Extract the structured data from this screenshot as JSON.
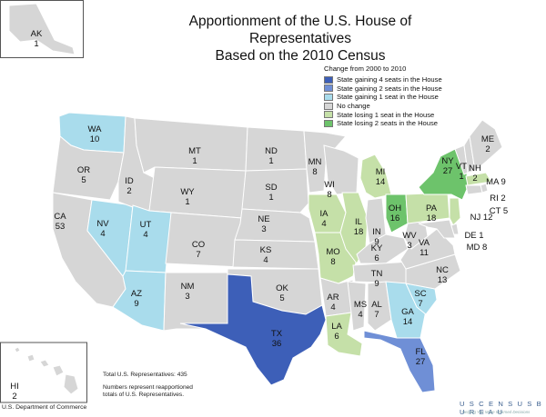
{
  "title": "Apportionment of the U.S. House of Representatives",
  "subtitle": "Based on the 2010 Census",
  "colors": {
    "gain4": "#3d5fb8",
    "gain2": "#6f8fd6",
    "gain1": "#a9dcec",
    "nochange": "#d6d6d6",
    "lose1": "#c5e0a8",
    "lose2": "#6dc36b",
    "water": "#ffffff"
  },
  "legend": {
    "title": "Change from 2000 to 2010",
    "items": [
      {
        "key": "gain4",
        "label": "State gaining 4 seats in the House"
      },
      {
        "key": "gain2",
        "label": "State gaining 2 seats in the House"
      },
      {
        "key": "gain1",
        "label": "State gaining 1 seat in the House"
      },
      {
        "key": "nochange",
        "label": "No change"
      },
      {
        "key": "lose1",
        "label": "State losing 1 seat in the House"
      },
      {
        "key": "lose2",
        "label": "State losing 2 seats in the House"
      }
    ]
  },
  "states": [
    {
      "abbr": "WA",
      "seats": 10,
      "change": 1
    },
    {
      "abbr": "OR",
      "seats": 5,
      "change": 0
    },
    {
      "abbr": "CA",
      "seats": 53,
      "change": 0
    },
    {
      "abbr": "NV",
      "seats": 4,
      "change": 1
    },
    {
      "abbr": "ID",
      "seats": 2,
      "change": 0
    },
    {
      "abbr": "MT",
      "seats": 1,
      "change": 0
    },
    {
      "abbr": "WY",
      "seats": 1,
      "change": 0
    },
    {
      "abbr": "UT",
      "seats": 4,
      "change": 1
    },
    {
      "abbr": "AZ",
      "seats": 9,
      "change": 1
    },
    {
      "abbr": "CO",
      "seats": 7,
      "change": 0
    },
    {
      "abbr": "NM",
      "seats": 3,
      "change": 0
    },
    {
      "abbr": "ND",
      "seats": 1,
      "change": 0
    },
    {
      "abbr": "SD",
      "seats": 1,
      "change": 0
    },
    {
      "abbr": "NE",
      "seats": 3,
      "change": 0
    },
    {
      "abbr": "KS",
      "seats": 4,
      "change": 0
    },
    {
      "abbr": "OK",
      "seats": 5,
      "change": 0
    },
    {
      "abbr": "TX",
      "seats": 36,
      "change": 4
    },
    {
      "abbr": "MN",
      "seats": 8,
      "change": 0
    },
    {
      "abbr": "IA",
      "seats": 4,
      "change": -1
    },
    {
      "abbr": "MO",
      "seats": 8,
      "change": -1
    },
    {
      "abbr": "AR",
      "seats": 4,
      "change": 0
    },
    {
      "abbr": "LA",
      "seats": 6,
      "change": -1
    },
    {
      "abbr": "WI",
      "seats": 8,
      "change": 0
    },
    {
      "abbr": "IL",
      "seats": 18,
      "change": -1
    },
    {
      "abbr": "MI",
      "seats": 14,
      "change": -1
    },
    {
      "abbr": "IN",
      "seats": 9,
      "change": 0
    },
    {
      "abbr": "OH",
      "seats": 16,
      "change": -2
    },
    {
      "abbr": "KY",
      "seats": 6,
      "change": 0
    },
    {
      "abbr": "TN",
      "seats": 9,
      "change": 0
    },
    {
      "abbr": "MS",
      "seats": 4,
      "change": 0
    },
    {
      "abbr": "AL",
      "seats": 7,
      "change": 0
    },
    {
      "abbr": "GA",
      "seats": 14,
      "change": 1
    },
    {
      "abbr": "FL",
      "seats": 27,
      "change": 2
    },
    {
      "abbr": "SC",
      "seats": 7,
      "change": 1
    },
    {
      "abbr": "NC",
      "seats": 13,
      "change": 0
    },
    {
      "abbr": "VA",
      "seats": 11,
      "change": 0
    },
    {
      "abbr": "WV",
      "seats": 3,
      "change": 0
    },
    {
      "abbr": "PA",
      "seats": 18,
      "change": -1
    },
    {
      "abbr": "NY",
      "seats": 27,
      "change": -2
    },
    {
      "abbr": "VT",
      "seats": 1,
      "change": 0
    },
    {
      "abbr": "NH",
      "seats": 2,
      "change": 0
    },
    {
      "abbr": "ME",
      "seats": 2,
      "change": 0
    },
    {
      "abbr": "MA",
      "seats": 9,
      "change": -1
    },
    {
      "abbr": "RI",
      "seats": 2,
      "change": 0
    },
    {
      "abbr": "CT",
      "seats": 5,
      "change": 0
    },
    {
      "abbr": "NJ",
      "seats": 12,
      "change": -1
    },
    {
      "abbr": "DE",
      "seats": 1,
      "change": 0
    },
    {
      "abbr": "MD",
      "seats": 8,
      "change": 0
    },
    {
      "abbr": "AK",
      "seats": 1,
      "change": 0
    },
    {
      "abbr": "HI",
      "seats": 2,
      "change": 0
    }
  ],
  "footer": {
    "total": "Total U.S. Representatives: 435",
    "note": "Numbers represent reapportioned totals of U.S. Representatives.",
    "department": "U.S. Department of Commerce",
    "agency": "U S C E N S U S B U R E A U",
    "tagline": "Helping You Make Informed Decisions"
  }
}
